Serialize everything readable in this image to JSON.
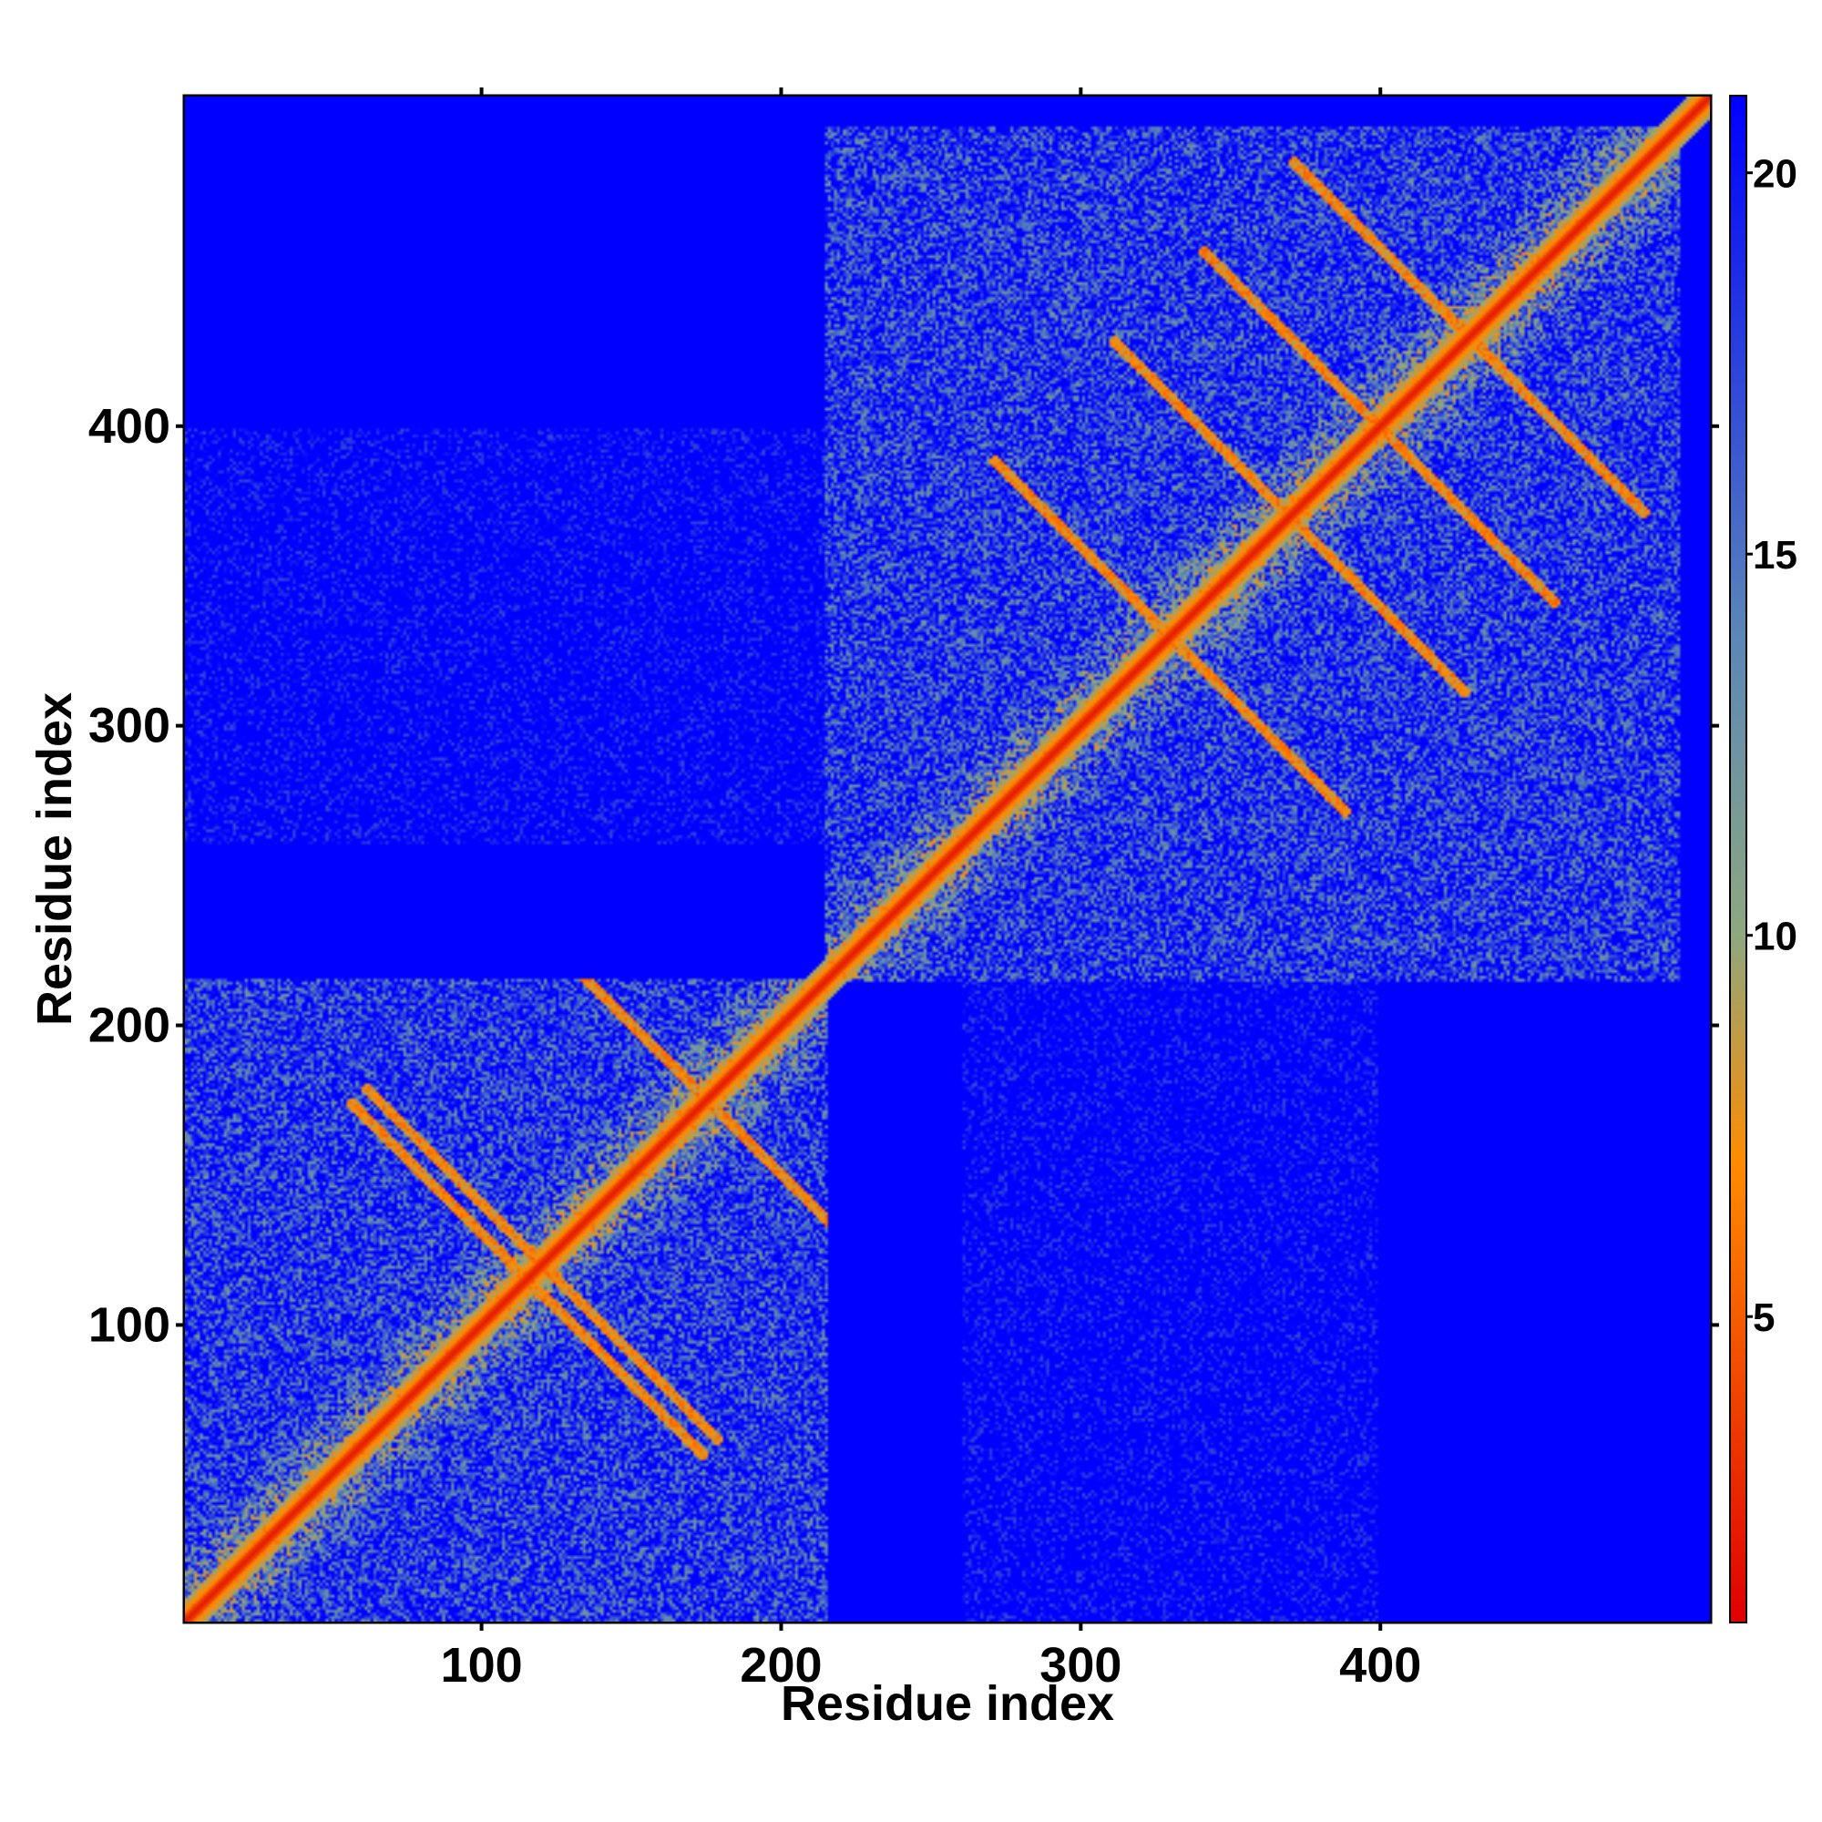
{
  "chart_data": {
    "type": "heatmap",
    "title": "",
    "xlabel": "Residue index",
    "ylabel": "Residue index",
    "xlim": [
      1,
      510
    ],
    "ylim": [
      1,
      510
    ],
    "x_ticks": [
      100,
      200,
      300,
      400
    ],
    "y_ticks": [
      100,
      200,
      300,
      400
    ],
    "colorbar": {
      "ticks": [
        5,
        10,
        15,
        20
      ],
      "range": [
        1,
        21
      ],
      "colors": [
        "#e00000",
        "#ff8c00",
        "#8fa880",
        "#5b86b8",
        "#0000ff"
      ]
    },
    "domains": [
      {
        "start": 1,
        "end": 215
      },
      {
        "start": 215,
        "end": 500
      }
    ],
    "background_color": "#0000ff",
    "diagonal_color": "#ff1a00"
  }
}
